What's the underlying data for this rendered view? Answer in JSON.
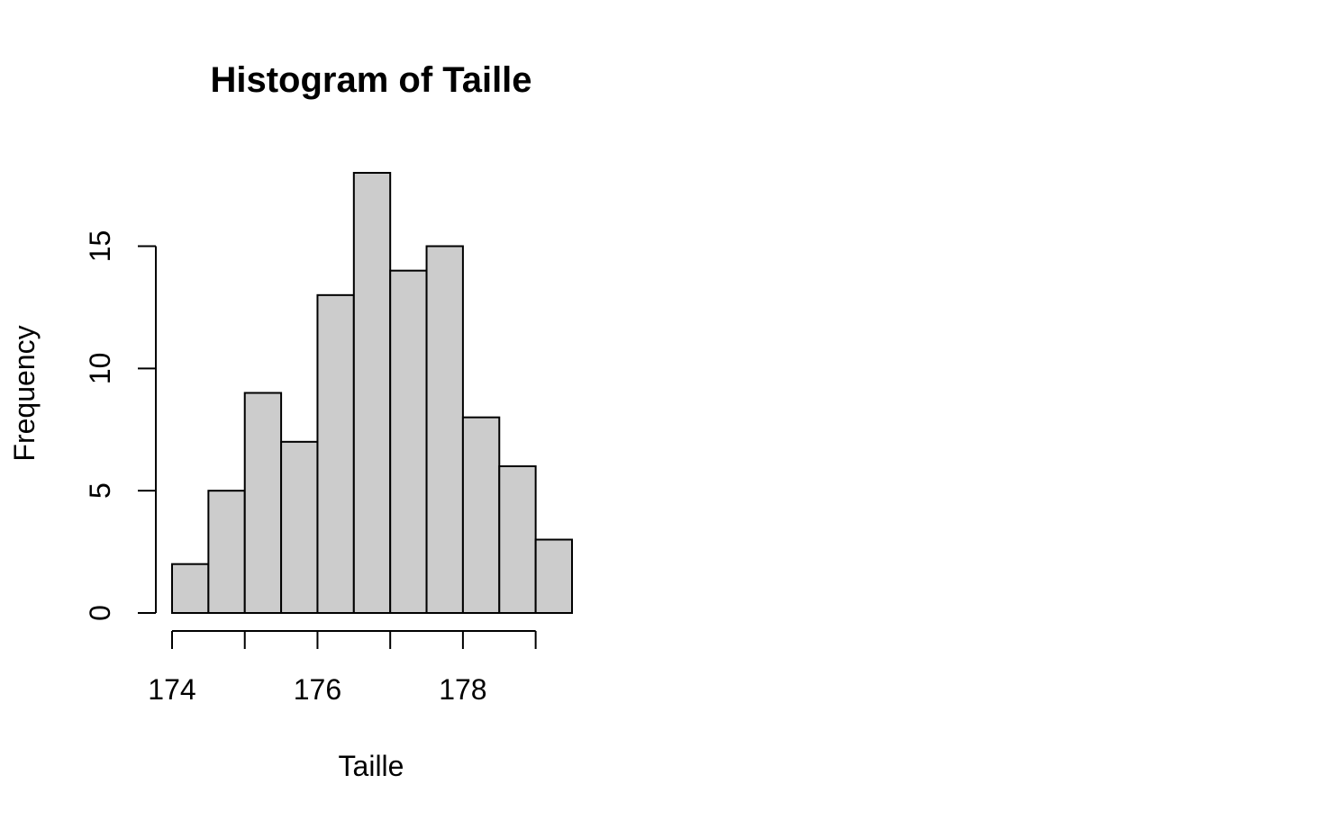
{
  "chart_data": {
    "type": "bar",
    "title": "Histogram of Taille",
    "xlabel": "Taille",
    "ylabel": "Frequency",
    "bin_edges": [
      174,
      174.5,
      175,
      175.5,
      176,
      176.5,
      177,
      177.5,
      178,
      178.5,
      179,
      179.5
    ],
    "values": [
      2,
      5,
      9,
      7,
      13,
      18,
      14,
      15,
      8,
      6,
      3
    ],
    "xlim": [
      174,
      179.5
    ],
    "ylim": [
      0,
      18
    ],
    "x_ticks": [
      174,
      175,
      176,
      177,
      178,
      179
    ],
    "x_tick_labels": [
      "174",
      "",
      "176",
      "",
      "178",
      ""
    ],
    "y_ticks": [
      0,
      5,
      10,
      15
    ],
    "y_tick_labels": [
      "0",
      "5",
      "10",
      "15"
    ],
    "grid": false,
    "legend": "none",
    "colors": {
      "bar_fill": "#cccccc",
      "bar_stroke": "#000000",
      "axis": "#000000"
    }
  }
}
